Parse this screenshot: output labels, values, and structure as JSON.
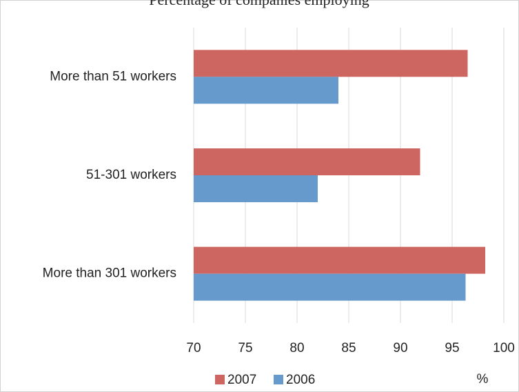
{
  "chart_data": {
    "type": "hbar",
    "title": "Percentage of companies employing",
    "categories": [
      "More than 51 workers",
      "51-301 workers",
      "More than 301 workers"
    ],
    "series": [
      {
        "name": "2007",
        "color": "#cd6660",
        "values": [
          96.5,
          91.9,
          98.2
        ]
      },
      {
        "name": "2006",
        "color": "#6699cc",
        "values": [
          84,
          82,
          96.3
        ]
      }
    ],
    "x_label": "%",
    "xlim": [
      70,
      100
    ],
    "xticks": [
      70,
      75,
      80,
      85,
      90,
      95,
      100
    ],
    "grid": true,
    "legend": "bottom"
  }
}
